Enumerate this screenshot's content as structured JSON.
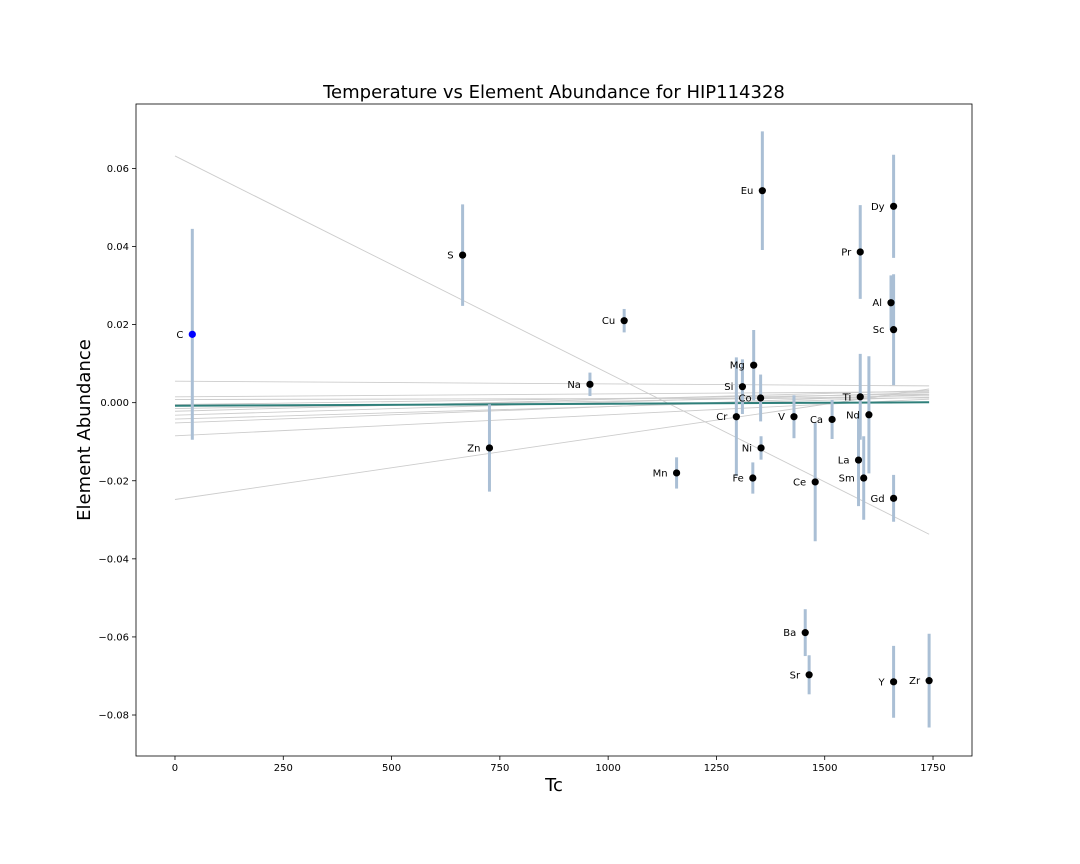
{
  "chart_data": {
    "type": "scatter",
    "title": "Temperature vs Element Abundance for HIP114328",
    "xlabel": "Tc",
    "ylabel": "Element Abundance",
    "xlim": [
      -90,
      1840
    ],
    "ylim": [
      -0.0905,
      0.0765
    ],
    "xticks": [
      0,
      250,
      500,
      750,
      1000,
      1250,
      1500,
      1750
    ],
    "xtick_labels": [
      "0",
      "250",
      "500",
      "750",
      "1000",
      "1250",
      "1500",
      "1750"
    ],
    "yticks": [
      0.06,
      0.04,
      0.02,
      0.0,
      -0.02,
      -0.04,
      -0.06,
      -0.08
    ],
    "ytick_labels": [
      "0.06",
      "0.04",
      "0.02",
      "0.000",
      "−0.02",
      "−0.04",
      "−0.06",
      "−0.08"
    ],
    "grid": false,
    "colors": {
      "point": "#000000",
      "highlight_point": "#0000ff",
      "errorbar": "#aabfd5",
      "fit_lines": "#cccccc",
      "best_fit": "#2e7f7a"
    },
    "points": [
      {
        "label": "C",
        "x": 40,
        "y": 0.0175,
        "err": 0.027,
        "highlight": true
      },
      {
        "label": "S",
        "x": 664,
        "y": 0.0378,
        "err": 0.013
      },
      {
        "label": "Zn",
        "x": 726,
        "y": -0.0116,
        "err": 0.0112
      },
      {
        "label": "Na",
        "x": 958,
        "y": 0.0047,
        "err": 0.003
      },
      {
        "label": "Cu",
        "x": 1037,
        "y": 0.021,
        "err": 0.003
      },
      {
        "label": "Mn",
        "x": 1158,
        "y": -0.018,
        "err": 0.004
      },
      {
        "label": "Cr",
        "x": 1296,
        "y": -0.0036,
        "err": 0.0152
      },
      {
        "label": "Si",
        "x": 1310,
        "y": 0.0041,
        "err": 0.007
      },
      {
        "label": "Fe",
        "x": 1334,
        "y": -0.0193,
        "err": 0.004
      },
      {
        "label": "Mg",
        "x": 1336,
        "y": 0.0096,
        "err": 0.009
      },
      {
        "label": "Co",
        "x": 1352,
        "y": 0.0012,
        "err": 0.006
      },
      {
        "label": "Ni",
        "x": 1353,
        "y": -0.0116,
        "err": 0.003
      },
      {
        "label": "Eu",
        "x": 1356,
        "y": 0.0543,
        "err": 0.0152
      },
      {
        "label": "V",
        "x": 1429,
        "y": -0.0036,
        "err": 0.0055
      },
      {
        "label": "Ba",
        "x": 1455,
        "y": -0.0589,
        "err": 0.006
      },
      {
        "label": "Sr",
        "x": 1464,
        "y": -0.0697,
        "err": 0.005
      },
      {
        "label": "Ce",
        "x": 1478,
        "y": -0.0203,
        "err": 0.0152
      },
      {
        "label": "Ca",
        "x": 1517,
        "y": -0.0043,
        "err": 0.005
      },
      {
        "label": "La",
        "x": 1578,
        "y": -0.0147,
        "err": 0.0118
      },
      {
        "label": "Pr",
        "x": 1582,
        "y": 0.0386,
        "err": 0.012
      },
      {
        "label": "Ti",
        "x": 1582,
        "y": 0.0015,
        "err": 0.011
      },
      {
        "label": "Sm",
        "x": 1590,
        "y": -0.0193,
        "err": 0.0107
      },
      {
        "label": "Nd",
        "x": 1602,
        "y": -0.0031,
        "err": 0.015
      },
      {
        "label": "Al",
        "x": 1653,
        "y": 0.0256,
        "err": 0.007
      },
      {
        "label": "Sc",
        "x": 1659,
        "y": 0.0187,
        "err": 0.0142
      },
      {
        "label": "Dy",
        "x": 1659,
        "y": 0.0503,
        "err": 0.0132
      },
      {
        "label": "Gd",
        "x": 1659,
        "y": -0.0245,
        "err": 0.006
      },
      {
        "label": "Y",
        "x": 1659,
        "y": -0.0715,
        "err": 0.0092
      },
      {
        "label": "Zr",
        "x": 1741,
        "y": -0.0712,
        "err": 0.012
      }
    ],
    "fit_lines": [
      {
        "x": [
          0,
          1741
        ],
        "y": [
          0.0632,
          -0.0337
        ]
      },
      {
        "x": [
          0,
          1741
        ],
        "y": [
          -0.0248,
          0.0035
        ]
      },
      {
        "x": [
          0,
          1741
        ],
        "y": [
          0.0055,
          0.0043
        ]
      },
      {
        "x": [
          0,
          1741
        ],
        "y": [
          0.0015,
          0.0028
        ]
      },
      {
        "x": [
          0,
          1741
        ],
        "y": [
          0.0008,
          0.0012
        ]
      },
      {
        "x": [
          0,
          1741
        ],
        "y": [
          -0.0005,
          0.0022
        ]
      },
      {
        "x": [
          0,
          1741
        ],
        "y": [
          -0.0015,
          0.0018
        ]
      },
      {
        "x": [
          0,
          1741
        ],
        "y": [
          -0.0022,
          0.0031
        ]
      },
      {
        "x": [
          0,
          1741
        ],
        "y": [
          -0.0032,
          0.0026
        ]
      },
      {
        "x": [
          0,
          1741
        ],
        "y": [
          -0.0042,
          0.0014
        ]
      },
      {
        "x": [
          0,
          1741
        ],
        "y": [
          -0.0052,
          0.0021
        ]
      },
      {
        "x": [
          0,
          1741
        ],
        "y": [
          -0.0085,
          0.0009
        ]
      }
    ],
    "best_fit": {
      "x": [
        0,
        1741
      ],
      "y": [
        -0.0008,
        0.0001
      ]
    }
  }
}
